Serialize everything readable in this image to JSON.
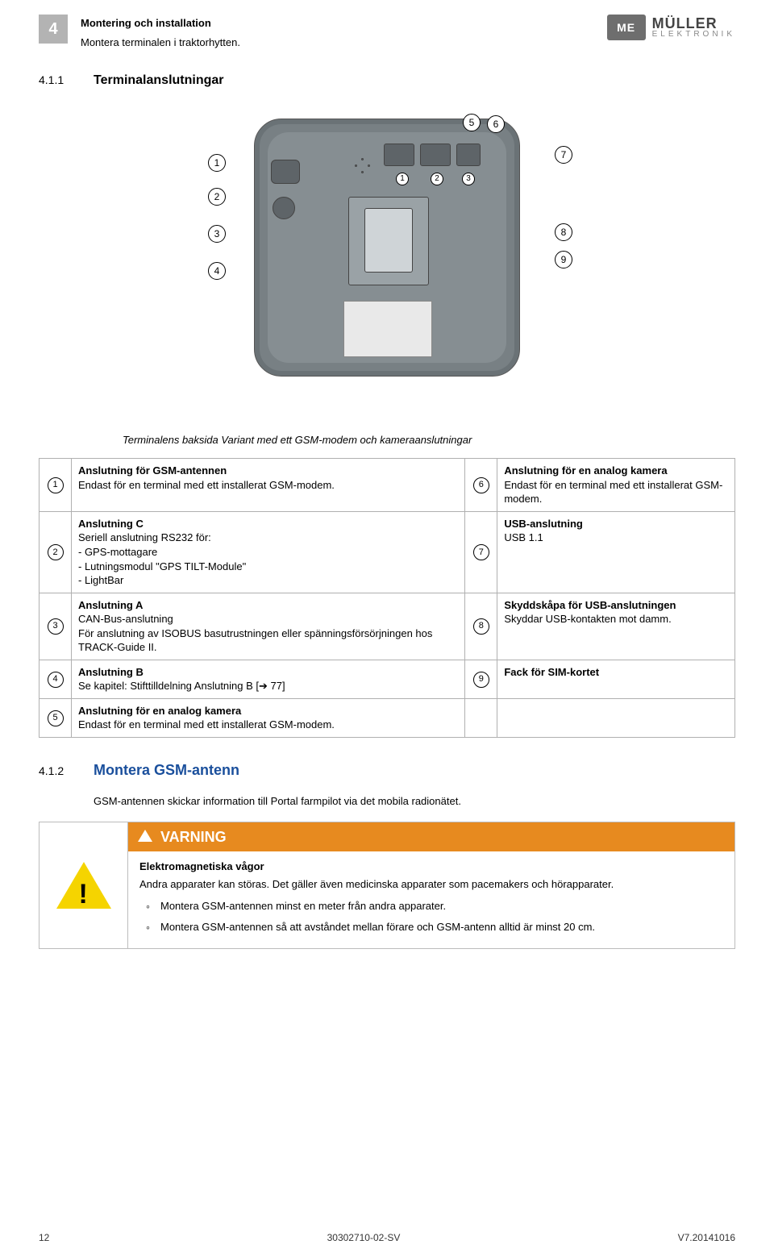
{
  "header": {
    "chapter_number": "4",
    "title": "Montering och installation",
    "subtitle": "Montera terminalen i traktorhytten.",
    "logo_box_text": "ME",
    "brand": "MÜLLER",
    "brand_tag": "ELEKTRONIK"
  },
  "section411": {
    "number": "4.1.1",
    "title": "Terminalanslutningar",
    "diagram": {
      "callouts_left": [
        "1",
        "2",
        "3",
        "4"
      ],
      "callouts_right_top": [
        "5",
        "6",
        "7"
      ],
      "callouts_right": [
        "8",
        "9"
      ],
      "ports_on_device": [
        "1",
        "2",
        "3"
      ]
    },
    "caption": "Terminalens baksida Variant med ett GSM-modem och kameraanslutningar",
    "table": [
      {
        "n": "1",
        "title": "Anslutning för GSM-antennen",
        "body": "Endast för en terminal med ett installerat GSM-modem."
      },
      {
        "n": "2",
        "title": "Anslutning C",
        "body": "Seriell anslutning RS232 för:\n- GPS-mottagare\n- Lutningsmodul \"GPS TILT-Module\"\n- LightBar"
      },
      {
        "n": "3",
        "title": "Anslutning A",
        "body": "CAN-Bus-anslutning\nFör anslutning av ISOBUS basutrustningen eller spänningsförsörjningen hos TRACK-Guide II."
      },
      {
        "n": "4",
        "title": "Anslutning B",
        "body": "Se kapitel: Stifttilldelning Anslutning B [➔ 77]"
      },
      {
        "n": "5",
        "title": "Anslutning för en analog kamera",
        "body": "Endast för en terminal med ett installerat GSM-modem."
      },
      {
        "n": "6",
        "title": "Anslutning för en analog kamera",
        "body": "Endast för en terminal med ett installerat GSM-modem."
      },
      {
        "n": "7",
        "title": "USB-anslutning",
        "body": "USB 1.1"
      },
      {
        "n": "8",
        "title": "Skyddskåpa för USB-anslutningen",
        "body": "Skyddar USB-kontakten mot damm."
      },
      {
        "n": "9",
        "title": "Fack för SIM-kortet",
        "body": ""
      }
    ]
  },
  "section412": {
    "number": "4.1.2",
    "title": "Montera GSM-antenn",
    "intro": "GSM-antennen skickar information till Portal farmpilot via det mobila radionätet."
  },
  "warning": {
    "heading": "VARNING",
    "bold": "Elektromagnetiska vågor",
    "text": "Andra apparater kan störas. Det gäller även medicinska apparater som pacemakers och hörapparater.",
    "bullets": [
      "Montera GSM-antennen minst en meter från andra apparater.",
      "Montera GSM-antennen så att avståndet mellan förare och GSM-antenn alltid är minst 20 cm."
    ]
  },
  "footer": {
    "page": "12",
    "doc": "30302710-02-SV",
    "ver": "V7.20141016"
  },
  "colors": {
    "badge_bg": "#b3b3b3",
    "section_blue": "#1a4f9c",
    "warn_orange": "#e78a1f",
    "warn_yellow": "#f5d400",
    "device_bg": "#788084"
  }
}
